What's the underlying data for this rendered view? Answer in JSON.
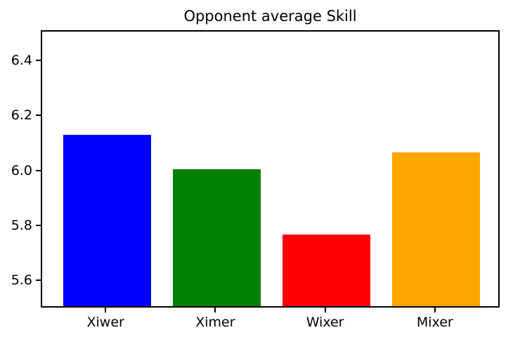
{
  "chart_data": {
    "type": "bar",
    "title": "Opponent average Skill",
    "categories": [
      "Xiwer",
      "Ximer",
      "Wixer",
      "Mixer"
    ],
    "values": [
      6.125,
      6.0,
      5.76,
      6.06
    ],
    "bar_colors": [
      "#0000ff",
      "#008000",
      "#ff0000",
      "#ffa500"
    ],
    "yticks": [
      5.6,
      5.8,
      6.0,
      6.2,
      6.4
    ],
    "ylim": [
      5.5,
      6.51
    ],
    "xlim": [
      -0.59,
      3.59
    ],
    "bar_width": 0.8,
    "grid": false
  },
  "figure": {
    "background": "#ffffff",
    "spine_color": "#000000",
    "text_color": "#000000"
  }
}
